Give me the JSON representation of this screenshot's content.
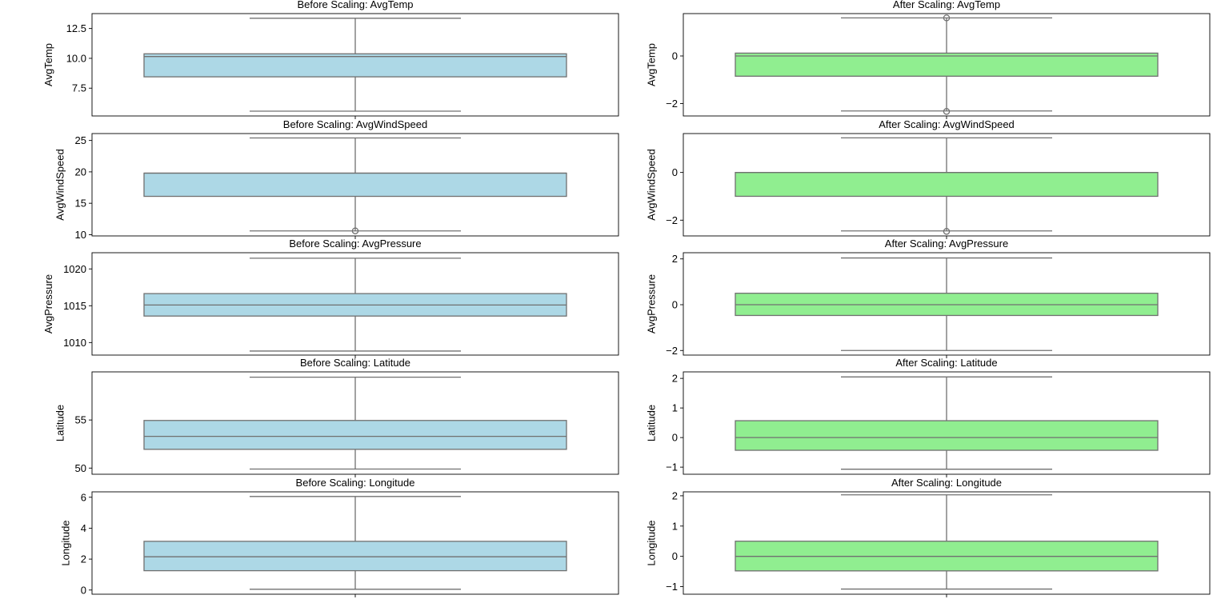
{
  "chart_data": [
    {
      "type": "box",
      "title": "Before Scaling: AvgTemp",
      "ylabel": "AvgTemp",
      "ylim": [
        5.17,
        13.75
      ],
      "yticks": [
        7.5,
        10.0,
        12.5
      ],
      "ytick_labels": [
        "7.5",
        "10.0",
        "12.5"
      ],
      "box": {
        "whisker_low": 5.57,
        "q1": 8.45,
        "median": 10.15,
        "q3": 10.38,
        "whisker_high": 13.36
      },
      "outliers": [],
      "color": "#add8e6"
    },
    {
      "type": "box",
      "title": "After Scaling: AvgTemp",
      "ylabel": "AvgTemp",
      "ylim": [
        -2.52,
        1.78
      ],
      "yticks": [
        -2,
        0
      ],
      "ytick_labels": [
        "−2",
        "0"
      ],
      "box": {
        "whisker_low": -2.31,
        "q1": -0.85,
        "median": 0.0,
        "q3": 0.12,
        "whisker_high": 1.6
      },
      "outliers": [
        1.6,
        -2.33
      ],
      "color": "#90ee90"
    },
    {
      "type": "box",
      "title": "Before Scaling: AvgWindSpeed",
      "ylabel": "AvgWindSpeed",
      "ylim": [
        9.8,
        26.1
      ],
      "yticks": [
        10,
        15,
        20,
        25
      ],
      "ytick_labels": [
        "10",
        "15",
        "20",
        "25"
      ],
      "box": {
        "whisker_low": 10.6,
        "q1": 16.1,
        "median": 19.8,
        "q3": 19.8,
        "whisker_high": 25.4
      },
      "outliers": [
        10.6
      ],
      "color": "#add8e6"
    },
    {
      "type": "box",
      "title": "After Scaling: AvgWindSpeed",
      "ylabel": "AvgWindSpeed",
      "ylim": [
        -2.66,
        1.63
      ],
      "yticks": [
        -2,
        0
      ],
      "ytick_labels": [
        "−2",
        "0"
      ],
      "box": {
        "whisker_low": -2.45,
        "q1": -1.0,
        "median": 0.0,
        "q3": 0.0,
        "whisker_high": 1.45
      },
      "outliers": [
        -2.47
      ],
      "color": "#90ee90"
    },
    {
      "type": "box",
      "title": "Before Scaling: AvgPressure",
      "ylabel": "AvgPressure",
      "ylim": [
        1008.3,
        1022.2
      ],
      "yticks": [
        1010,
        1015,
        1020
      ],
      "ytick_labels": [
        "1010",
        "1015",
        "1020"
      ],
      "box": {
        "whisker_low": 1008.85,
        "q1": 1013.6,
        "median": 1015.1,
        "q3": 1016.65,
        "whisker_high": 1021.45
      },
      "outliers": [],
      "color": "#add8e6"
    },
    {
      "type": "box",
      "title": "After Scaling: AvgPressure",
      "ylabel": "AvgPressure",
      "ylim": [
        -2.2,
        2.27
      ],
      "yticks": [
        -2,
        0,
        2
      ],
      "ytick_labels": [
        "−2",
        "0",
        "2"
      ],
      "box": {
        "whisker_low": -2.0,
        "q1": -0.47,
        "median": 0.0,
        "q3": 0.5,
        "whisker_high": 2.04
      },
      "outliers": [],
      "color": "#90ee90"
    },
    {
      "type": "box",
      "title": "Before Scaling: Latitude",
      "ylabel": "Latitude",
      "ylim": [
        49.36,
        60.0
      ],
      "yticks": [
        50,
        55
      ],
      "ytick_labels": [
        "50",
        "55"
      ],
      "box": {
        "whisker_low": 49.9,
        "q1": 51.95,
        "median": 53.3,
        "q3": 54.95,
        "whisker_high": 59.45
      },
      "outliers": [],
      "color": "#add8e6"
    },
    {
      "type": "box",
      "title": "After Scaling: Latitude",
      "ylabel": "Latitude",
      "ylim": [
        -1.24,
        2.22
      ],
      "yticks": [
        -1,
        0,
        1,
        2
      ],
      "ytick_labels": [
        "−1",
        "0",
        "1",
        "2"
      ],
      "box": {
        "whisker_low": -1.07,
        "q1": -0.43,
        "median": 0.0,
        "q3": 0.57,
        "whisker_high": 2.05
      },
      "outliers": [],
      "color": "#90ee90"
    },
    {
      "type": "box",
      "title": "Before Scaling: Longitude",
      "ylabel": "Longitude",
      "ylim": [
        -0.27,
        6.35
      ],
      "yticks": [
        0,
        2,
        4,
        6
      ],
      "ytick_labels": [
        "0",
        "2",
        "4",
        "6"
      ],
      "box": {
        "whisker_low": 0.05,
        "q1": 1.25,
        "median": 2.15,
        "q3": 3.15,
        "whisker_high": 6.05
      },
      "outliers": [],
      "color": "#add8e6"
    },
    {
      "type": "box",
      "title": "After Scaling: Longitude",
      "ylabel": "Longitude",
      "ylim": [
        -1.25,
        2.13
      ],
      "yticks": [
        -1,
        0,
        1,
        2
      ],
      "ytick_labels": [
        "−1",
        "0",
        "1",
        "2"
      ],
      "box": {
        "whisker_low": -1.08,
        "q1": -0.48,
        "median": 0.0,
        "q3": 0.5,
        "whisker_high": 2.03
      },
      "outliers": [],
      "color": "#90ee90"
    }
  ],
  "style": {
    "line_color": "#707070",
    "axes_color": "#000000",
    "before_fill": "#add8e6",
    "after_fill": "#90ee90"
  }
}
